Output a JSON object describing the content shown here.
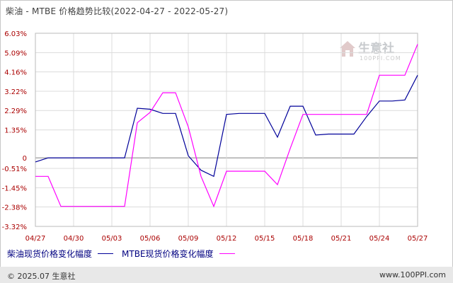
{
  "title": "柴油 - MTBE 价格趋势比较(2022-04-27 - 2022-05-27)",
  "watermark": {
    "text": "生意社",
    "url": "100PPI.COM"
  },
  "footer": {
    "copyright": "© 2025.07 生意社",
    "site": "www.100PPI.com"
  },
  "colors": {
    "diesel": "#000099",
    "mtbe": "#ff00ff",
    "zero_line": "#808080",
    "grid": "#dcdcdc",
    "axis_text": "#aa0000"
  },
  "chart_data": {
    "type": "line",
    "title": "柴油 - MTBE 价格趋势比较(2022-04-27 - 2022-05-27)",
    "xlabel": "",
    "ylabel": "",
    "ylim": [
      -3.32,
      6.03
    ],
    "grid": true,
    "legend": "bottom-left",
    "y_ticks": [
      "6.03%",
      "5.09%",
      "4.16%",
      "3.22%",
      "2.29%",
      "1.35%",
      "0",
      "-0.51%",
      "-1.45%",
      "-2.38%",
      "-3.32%"
    ],
    "y_tick_values": [
      6.03,
      5.09,
      4.16,
      3.22,
      2.29,
      1.35,
      0,
      -0.51,
      -1.45,
      -2.38,
      -3.32
    ],
    "x_ticks": [
      "04/27",
      "04/30",
      "05/03",
      "05/06",
      "05/09",
      "05/12",
      "05/15",
      "05/18",
      "05/21",
      "05/24",
      "05/27"
    ],
    "x_tick_values": [
      0,
      3,
      6,
      9,
      12,
      15,
      18,
      21,
      24,
      27,
      30
    ],
    "series": [
      {
        "name": "柴油现货价格变化幅度",
        "color": "#000099",
        "x": [
          0,
          1,
          7,
          8,
          9,
          10,
          11,
          12,
          13,
          14,
          15,
          16,
          17,
          18,
          19,
          20,
          21,
          22,
          23,
          24,
          25,
          26,
          27,
          28,
          29,
          30
        ],
        "values": [
          -0.2,
          0.0,
          0.0,
          2.4,
          2.35,
          2.15,
          2.15,
          0.1,
          -0.6,
          -0.9,
          2.1,
          2.15,
          2.15,
          2.15,
          1.0,
          2.5,
          2.5,
          1.1,
          1.15,
          1.15,
          1.15,
          2.0,
          2.75,
          2.75,
          2.8,
          4.0
        ]
      },
      {
        "name": "MTBE现货价格变化幅度",
        "color": "#ff00ff",
        "x": [
          0,
          1,
          2,
          7,
          8,
          9,
          10,
          11,
          12,
          13,
          14,
          15,
          16,
          17,
          18,
          19,
          20,
          21,
          22,
          23,
          24,
          25,
          26,
          27,
          28,
          29,
          30
        ],
        "values": [
          -0.9,
          -0.9,
          -2.35,
          -2.35,
          1.7,
          2.2,
          3.15,
          3.15,
          1.5,
          -0.9,
          -2.35,
          -0.65,
          -0.65,
          -0.65,
          -0.65,
          -1.3,
          0.45,
          2.1,
          2.1,
          2.1,
          2.1,
          2.1,
          2.1,
          4.0,
          4.0,
          4.0,
          5.5
        ]
      }
    ]
  }
}
